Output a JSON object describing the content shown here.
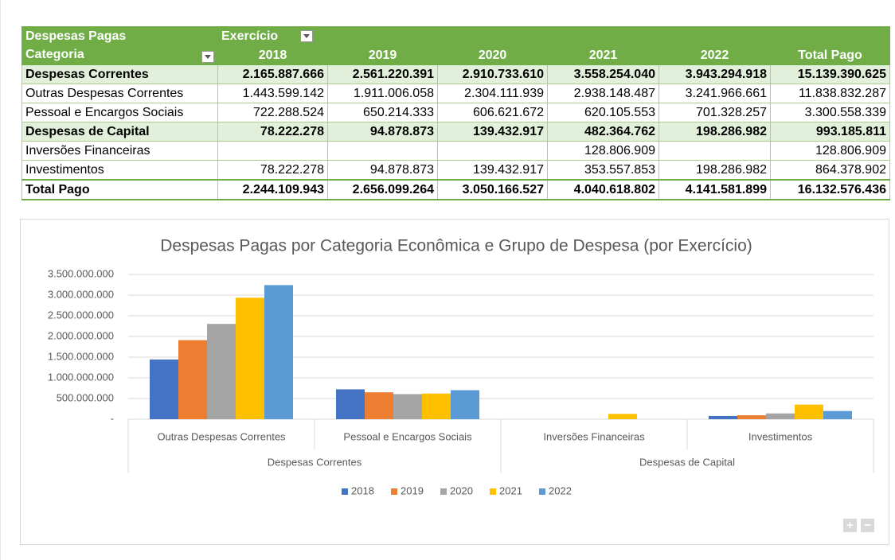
{
  "table": {
    "header": {
      "row1": [
        "Despesas Pagas",
        "Exercício"
      ],
      "row2": [
        "Categoria",
        "2018",
        "2019",
        "2020",
        "2021",
        "2022",
        "Total Pago"
      ]
    },
    "rows": [
      {
        "label": "Despesas Correntes",
        "bold": true,
        "cells": [
          "2.165.887.666",
          "2.561.220.391",
          "2.910.733.610",
          "3.558.254.040",
          "3.943.294.918",
          "15.139.390.625"
        ]
      },
      {
        "label": "Outras Despesas Correntes",
        "bold": false,
        "cells": [
          "1.443.599.142",
          "1.911.006.058",
          "2.304.111.939",
          "2.938.148.487",
          "3.241.966.661",
          "11.838.832.287"
        ]
      },
      {
        "label": "Pessoal e Encargos Sociais",
        "bold": false,
        "cells": [
          "722.288.524",
          "650.214.333",
          "606.621.672",
          "620.105.553",
          "701.328.257",
          "3.300.558.339"
        ]
      },
      {
        "label": "Despesas de Capital",
        "bold": true,
        "cells": [
          "78.222.278",
          "94.878.873",
          "139.432.917",
          "482.364.762",
          "198.286.982",
          "993.185.811"
        ]
      },
      {
        "label": "Inversões Financeiras",
        "bold": false,
        "cells": [
          null,
          null,
          null,
          "128.806.909",
          null,
          "128.806.909"
        ]
      },
      {
        "label": "Investimentos",
        "bold": false,
        "cells": [
          "78.222.278",
          "94.878.873",
          "139.432.917",
          "353.557.853",
          "198.286.982",
          "864.378.902"
        ]
      },
      {
        "label": "Total Pago",
        "bold": true,
        "total": true,
        "cells": [
          "2.244.109.943",
          "2.656.099.264",
          "3.050.166.527",
          "4.040.618.802",
          "4.141.581.899",
          "16.132.576.436"
        ]
      }
    ]
  },
  "chart_data": {
    "type": "bar",
    "title": "Despesas Pagas por Categoria Econômica e Grupo de Despesa (por Exercício)",
    "groups": [
      {
        "label": "Despesas Correntes",
        "categories": [
          "Outras Despesas Correntes",
          "Pessoal e Encargos Sociais"
        ]
      },
      {
        "label": "Despesas de Capital",
        "categories": [
          "Inversões Financeiras",
          "Investimentos"
        ]
      }
    ],
    "series": [
      {
        "name": "2018",
        "color": "#4472c4",
        "values": [
          1443599142,
          722288524,
          null,
          78222278
        ]
      },
      {
        "name": "2019",
        "color": "#ed7d31",
        "values": [
          1911006058,
          650214333,
          null,
          94878873
        ]
      },
      {
        "name": "2020",
        "color": "#a5a5a5",
        "values": [
          2304111939,
          606621672,
          null,
          139432917
        ]
      },
      {
        "name": "2021",
        "color": "#ffc000",
        "values": [
          2938148487,
          620105553,
          128806909,
          353557853
        ]
      },
      {
        "name": "2022",
        "color": "#5b9bd5",
        "values": [
          3241966661,
          701328257,
          null,
          198286982
        ]
      }
    ],
    "ylim": [
      0,
      3500000000
    ],
    "yticks": [
      {
        "value": 0,
        "label": "-"
      },
      {
        "value": 500000000,
        "label": "500.000.000"
      },
      {
        "value": 1000000000,
        "label": "1.000.000.000"
      },
      {
        "value": 1500000000,
        "label": "1.500.000.000"
      },
      {
        "value": 2000000000,
        "label": "2.000.000.000"
      },
      {
        "value": 2500000000,
        "label": "2.500.000.000"
      },
      {
        "value": 3000000000,
        "label": "3.000.000.000"
      },
      {
        "value": 3500000000,
        "label": "3.500.000.000"
      }
    ],
    "grid": true,
    "legend": "bottom"
  }
}
